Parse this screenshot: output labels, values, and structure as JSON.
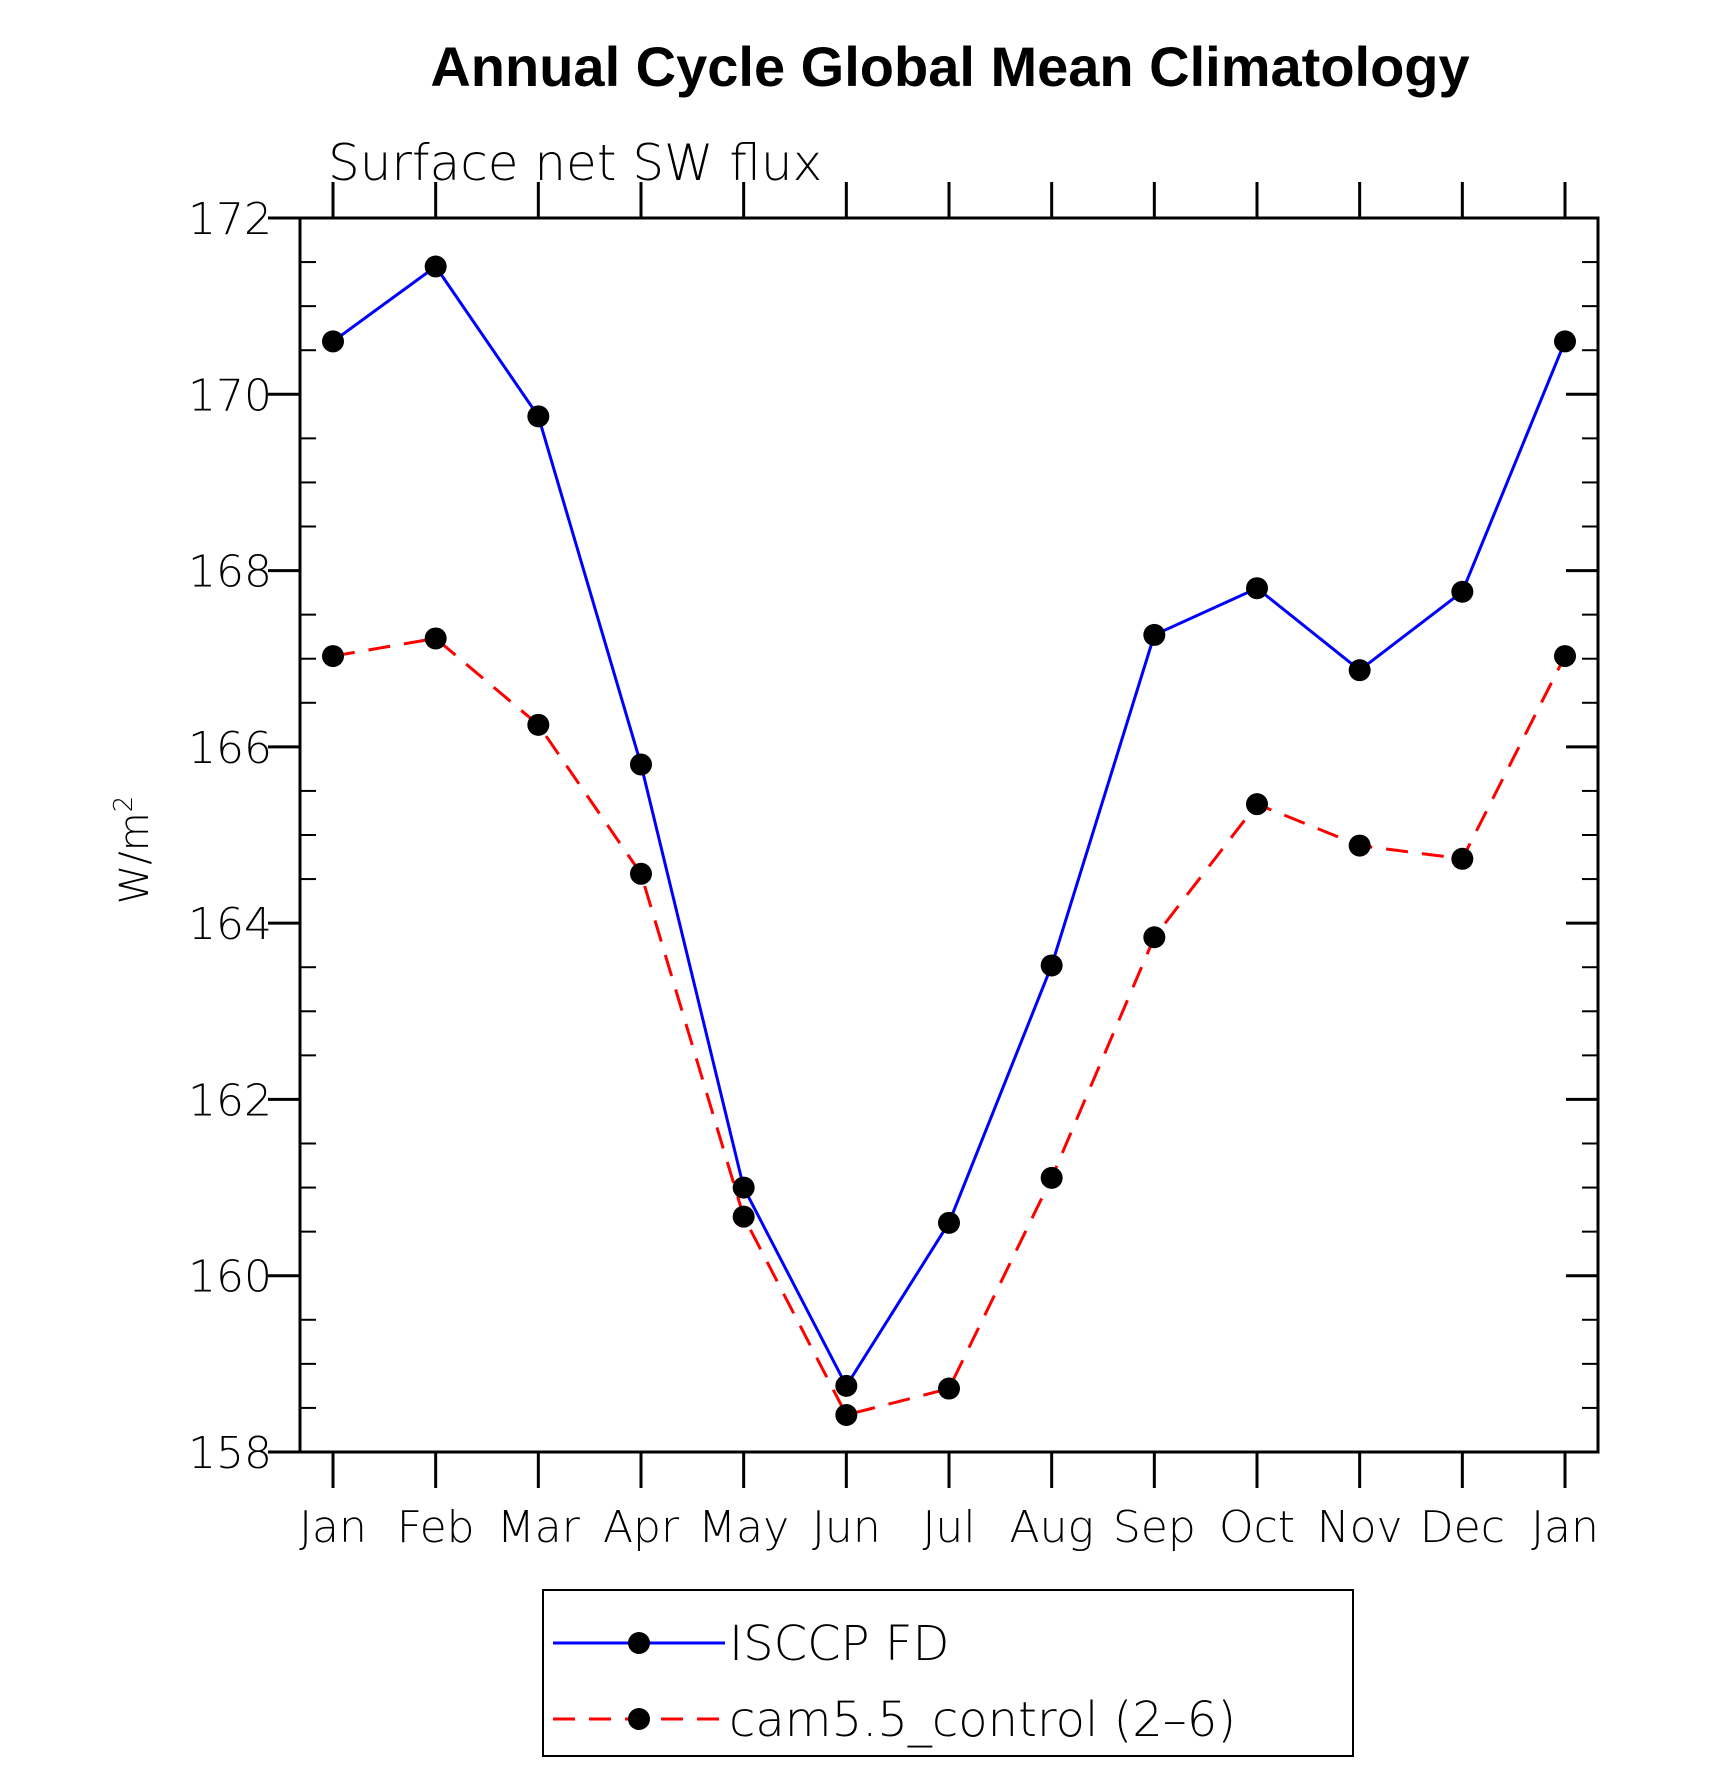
{
  "chart_data": {
    "type": "line",
    "title": "Annual Cycle Global Mean Climatology",
    "subtitle": "Surface net SW flux",
    "ylabel_base": "W/m",
    "ylabel_sup": "2",
    "xlabel": "",
    "categories": [
      "Jan",
      "Feb",
      "Mar",
      "Apr",
      "May",
      "Jun",
      "Jul",
      "Aug",
      "Sep",
      "Oct",
      "Nov",
      "Dec",
      "Jan"
    ],
    "ylim": [
      158,
      172
    ],
    "yticks": [
      158,
      160,
      162,
      164,
      166,
      168,
      170,
      172
    ],
    "grid": false,
    "legend_position": "bottom",
    "series": [
      {
        "name": "ISCCP FD",
        "color": "#0000ff",
        "dashed": false,
        "values": [
          170.6,
          171.45,
          169.75,
          165.8,
          161.0,
          158.75,
          160.6,
          163.52,
          167.27,
          167.8,
          166.87,
          167.76,
          170.6
        ]
      },
      {
        "name": "cam5.5_control (2–6)",
        "color": "#ff0000",
        "dashed": true,
        "values": [
          167.03,
          167.23,
          166.25,
          164.56,
          160.67,
          158.42,
          158.72,
          161.11,
          163.84,
          165.35,
          164.88,
          164.73,
          167.03
        ]
      }
    ]
  }
}
